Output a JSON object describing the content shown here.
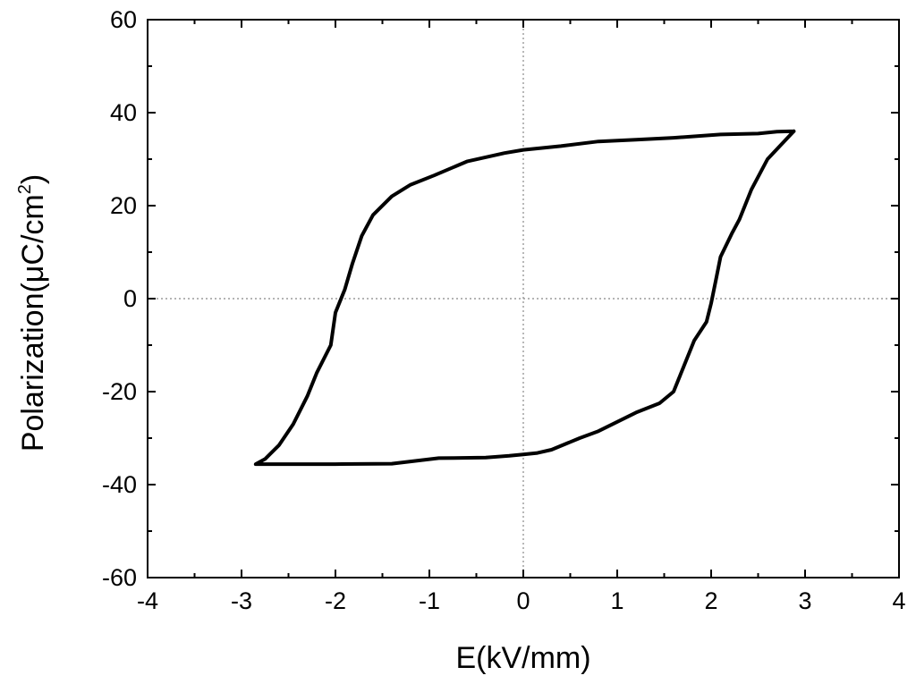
{
  "chart_data": {
    "type": "line",
    "title": "",
    "xlabel": "E(kV/mm)",
    "ylabel_main": "Polarization(μC/cm",
    "ylabel_sup": "2",
    "ylabel_close": ")",
    "xlim": [
      -4,
      4
    ],
    "ylim": [
      -60,
      60
    ],
    "x_ticks": [
      -4,
      -3,
      -2,
      -1,
      0,
      1,
      2,
      3,
      4
    ],
    "x_tick_labels": [
      "-4",
      "-3",
      "-2",
      "-1",
      "0",
      "1",
      "2",
      "3",
      "4"
    ],
    "y_ticks": [
      -60,
      -40,
      -20,
      0,
      20,
      40,
      60
    ],
    "y_tick_labels": [
      "-60",
      "-40",
      "-20",
      "0",
      "20",
      "40",
      "60"
    ],
    "zero_reference_lines": true,
    "grid": false,
    "legend": "none",
    "series": [
      {
        "x": [
          2.88,
          2.6,
          2.43,
          2.3,
          2.22,
          2.1,
          2.05,
          2.0,
          1.95,
          1.82,
          1.7,
          1.6,
          1.45,
          1.2,
          1.0,
          0.8,
          0.6,
          0.3,
          0.15,
          0.0,
          -0.15,
          -0.4,
          -0.9,
          -1.4,
          -2.0,
          -2.85,
          -2.75,
          -2.6,
          -2.45,
          -2.3,
          -2.2,
          -2.05,
          -2.0,
          -1.9,
          -1.82,
          -1.72,
          -1.6,
          -1.4,
          -1.2,
          -0.95,
          -0.6,
          -0.2,
          0.0,
          0.4,
          0.8,
          1.2,
          1.6,
          2.1,
          2.5,
          2.7,
          2.88
        ],
        "y": [
          36.0,
          30.0,
          23.5,
          17.0,
          14.0,
          9.0,
          4.0,
          -1.0,
          -5.0,
          -9.0,
          -15.0,
          -20.0,
          -22.5,
          -24.5,
          -26.5,
          -28.5,
          -30.0,
          -32.5,
          -33.2,
          -33.5,
          -33.8,
          -34.2,
          -34.3,
          -35.5,
          -35.6,
          -35.6,
          -34.5,
          -31.5,
          -27.0,
          -21.0,
          -16.0,
          -10.0,
          -3.0,
          2.0,
          7.5,
          13.5,
          18.0,
          22.0,
          24.5,
          26.5,
          29.5,
          31.3,
          32.0,
          32.8,
          33.8,
          34.2,
          34.6,
          35.3,
          35.5,
          35.9,
          36.0
        ]
      }
    ]
  }
}
